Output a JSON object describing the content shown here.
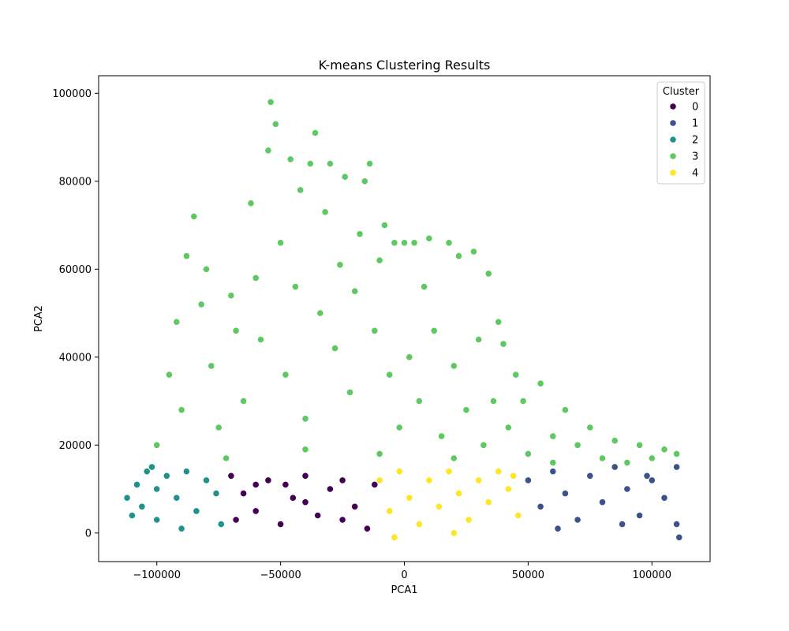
{
  "chart_data": {
    "type": "scatter",
    "title": "K-means Clustering Results",
    "xlabel": "PCA1",
    "ylabel": "PCA2",
    "xlim": [
      -123500,
      123500
    ],
    "ylim": [
      -6500,
      104000
    ],
    "xticks": [
      -100000,
      -50000,
      0,
      50000,
      100000
    ],
    "xtick_labels": [
      "−100000",
      "−50000",
      "0",
      "50000",
      "100000"
    ],
    "yticks": [
      0,
      20000,
      40000,
      60000,
      80000,
      100000
    ],
    "ytick_labels": [
      "0",
      "20000",
      "40000",
      "60000",
      "80000",
      "100000"
    ],
    "grid": false,
    "legend": {
      "title": "Cluster",
      "placement": "top-right"
    },
    "series": [
      {
        "name": "0",
        "color": "#440154",
        "points": [
          [
            -70000,
            13000
          ],
          [
            -65000,
            9000
          ],
          [
            -60000,
            5000
          ],
          [
            -55000,
            12000
          ],
          [
            -50000,
            2000
          ],
          [
            -45000,
            8000
          ],
          [
            -40000,
            13000
          ],
          [
            -35000,
            4000
          ],
          [
            -30000,
            10000
          ],
          [
            -25000,
            12000
          ],
          [
            -20000,
            6000
          ],
          [
            -15000,
            1000
          ],
          [
            -12000,
            11000
          ],
          [
            -60000,
            11000
          ],
          [
            -40000,
            7000
          ],
          [
            -25000,
            3000
          ],
          [
            -68000,
            3000
          ],
          [
            -48000,
            11000
          ]
        ]
      },
      {
        "name": "1",
        "color": "#3b528b",
        "points": [
          [
            50000,
            12000
          ],
          [
            55000,
            6000
          ],
          [
            60000,
            14000
          ],
          [
            65000,
            9000
          ],
          [
            70000,
            3000
          ],
          [
            75000,
            13000
          ],
          [
            80000,
            7000
          ],
          [
            85000,
            15000
          ],
          [
            90000,
            10000
          ],
          [
            95000,
            4000
          ],
          [
            100000,
            12000
          ],
          [
            105000,
            8000
          ],
          [
            110000,
            15000
          ],
          [
            110000,
            2000
          ],
          [
            111000,
            -1000
          ],
          [
            62000,
            1000
          ],
          [
            88000,
            2000
          ],
          [
            98000,
            13000
          ]
        ]
      },
      {
        "name": "2",
        "color": "#21918c",
        "points": [
          [
            -112000,
            8000
          ],
          [
            -110000,
            4000
          ],
          [
            -108000,
            11000
          ],
          [
            -106000,
            6000
          ],
          [
            -104000,
            14000
          ],
          [
            -102000,
            15000
          ],
          [
            -100000,
            10000
          ],
          [
            -96000,
            13000
          ],
          [
            -92000,
            8000
          ],
          [
            -88000,
            14000
          ],
          [
            -84000,
            5000
          ],
          [
            -80000,
            12000
          ],
          [
            -76000,
            9000
          ],
          [
            -74000,
            2000
          ],
          [
            -90000,
            1000
          ],
          [
            -100000,
            3000
          ]
        ]
      },
      {
        "name": "3",
        "color": "#5ec962",
        "points": [
          [
            -100000,
            20000
          ],
          [
            -95000,
            36000
          ],
          [
            -92000,
            48000
          ],
          [
            -90000,
            28000
          ],
          [
            -88000,
            63000
          ],
          [
            -85000,
            72000
          ],
          [
            -82000,
            52000
          ],
          [
            -80000,
            60000
          ],
          [
            -78000,
            38000
          ],
          [
            -75000,
            24000
          ],
          [
            -70000,
            54000
          ],
          [
            -68000,
            46000
          ],
          [
            -65000,
            30000
          ],
          [
            -62000,
            75000
          ],
          [
            -60000,
            58000
          ],
          [
            -58000,
            44000
          ],
          [
            -55000,
            87000
          ],
          [
            -54000,
            98000
          ],
          [
            -52000,
            93000
          ],
          [
            -50000,
            66000
          ],
          [
            -48000,
            36000
          ],
          [
            -46000,
            85000
          ],
          [
            -44000,
            56000
          ],
          [
            -42000,
            78000
          ],
          [
            -40000,
            26000
          ],
          [
            -38000,
            84000
          ],
          [
            -36000,
            91000
          ],
          [
            -34000,
            50000
          ],
          [
            -32000,
            73000
          ],
          [
            -30000,
            84000
          ],
          [
            -28000,
            42000
          ],
          [
            -26000,
            61000
          ],
          [
            -24000,
            81000
          ],
          [
            -22000,
            32000
          ],
          [
            -20000,
            55000
          ],
          [
            -18000,
            68000
          ],
          [
            -16000,
            80000
          ],
          [
            -14000,
            84000
          ],
          [
            -12000,
            46000
          ],
          [
            -10000,
            62000
          ],
          [
            -8000,
            70000
          ],
          [
            -6000,
            36000
          ],
          [
            -4000,
            66000
          ],
          [
            -2000,
            24000
          ],
          [
            0,
            66000
          ],
          [
            2000,
            40000
          ],
          [
            4000,
            66000
          ],
          [
            6000,
            30000
          ],
          [
            8000,
            56000
          ],
          [
            10000,
            67000
          ],
          [
            12000,
            46000
          ],
          [
            15000,
            22000
          ],
          [
            18000,
            66000
          ],
          [
            20000,
            38000
          ],
          [
            22000,
            63000
          ],
          [
            25000,
            28000
          ],
          [
            28000,
            64000
          ],
          [
            30000,
            44000
          ],
          [
            32000,
            20000
          ],
          [
            34000,
            59000
          ],
          [
            36000,
            30000
          ],
          [
            38000,
            48000
          ],
          [
            40000,
            43000
          ],
          [
            42000,
            24000
          ],
          [
            45000,
            36000
          ],
          [
            48000,
            30000
          ],
          [
            50000,
            18000
          ],
          [
            55000,
            34000
          ],
          [
            60000,
            22000
          ],
          [
            65000,
            28000
          ],
          [
            70000,
            20000
          ],
          [
            75000,
            24000
          ],
          [
            80000,
            17000
          ],
          [
            85000,
            21000
          ],
          [
            90000,
            16000
          ],
          [
            95000,
            20000
          ],
          [
            100000,
            17000
          ],
          [
            105000,
            19000
          ],
          [
            110000,
            18000
          ],
          [
            -72000,
            17000
          ],
          [
            -40000,
            19000
          ],
          [
            -10000,
            18000
          ],
          [
            20000,
            17000
          ],
          [
            60000,
            16000
          ]
        ]
      },
      {
        "name": "4",
        "color": "#fde725",
        "points": [
          [
            -10000,
            12000
          ],
          [
            -6000,
            5000
          ],
          [
            -2000,
            14000
          ],
          [
            2000,
            8000
          ],
          [
            6000,
            2000
          ],
          [
            10000,
            12000
          ],
          [
            14000,
            6000
          ],
          [
            18000,
            14000
          ],
          [
            22000,
            9000
          ],
          [
            26000,
            3000
          ],
          [
            30000,
            12000
          ],
          [
            34000,
            7000
          ],
          [
            38000,
            14000
          ],
          [
            42000,
            10000
          ],
          [
            46000,
            4000
          ],
          [
            -4000,
            -1000
          ],
          [
            20000,
            0
          ],
          [
            44000,
            13000
          ]
        ]
      }
    ]
  }
}
